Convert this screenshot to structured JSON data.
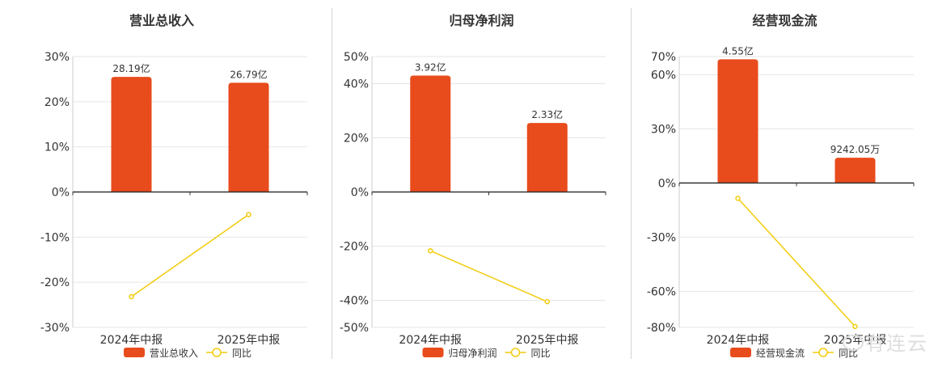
{
  "chart_data": [
    {
      "type": "bar",
      "title": "营业总收入",
      "categories": [
        "2024年中报",
        "2025年中报"
      ],
      "bar_labels": [
        "28.19亿",
        "26.79亿"
      ],
      "bar_values": [
        25.5,
        24.2
      ],
      "line_values": [
        -23.2,
        -5.0
      ],
      "ylim": [
        -30,
        30
      ],
      "ticks": [
        30,
        20,
        10,
        0,
        -10,
        -20,
        -30
      ],
      "tick_labels": [
        "30%",
        "20%",
        "10%",
        "0%",
        "-10%",
        "-20%",
        "-30%"
      ],
      "legend": [
        "营业总收入",
        "同比"
      ]
    },
    {
      "type": "bar",
      "title": "归母净利润",
      "categories": [
        "2024年中报",
        "2025年中报"
      ],
      "bar_labels": [
        "3.92亿",
        "2.33亿"
      ],
      "bar_values": [
        43,
        25.5
      ],
      "line_values": [
        -21.7,
        -40.5
      ],
      "ylim": [
        -50,
        50
      ],
      "ticks": [
        50,
        40,
        20,
        0,
        -20,
        -40,
        -50
      ],
      "tick_labels": [
        "50%",
        "40%",
        "20%",
        "0%",
        "-20%",
        "-40%",
        "-50%"
      ],
      "legend": [
        "归母净利润",
        "同比"
      ]
    },
    {
      "type": "bar",
      "title": "经营现金流",
      "categories": [
        "2024年中报",
        "2025年中报"
      ],
      "bar_labels": [
        "4.55亿",
        "9242.05万"
      ],
      "bar_values": [
        68.5,
        14
      ],
      "line_values": [
        -8.5,
        -79.5
      ],
      "ylim": [
        -80,
        70
      ],
      "ticks": [
        70,
        60,
        30,
        0,
        -30,
        -60,
        -80
      ],
      "tick_labels": [
        "70%",
        "60%",
        "30%",
        "0%",
        "-30%",
        "-60%",
        "-80%"
      ],
      "legend": [
        "经营现金流",
        "同比"
      ]
    }
  ],
  "colors": {
    "bar": "#e84b1c",
    "line": "#f2cc0c",
    "grid": "#e6e6e6",
    "axis": "#333333",
    "text": "#333333"
  },
  "watermark": "有连云"
}
